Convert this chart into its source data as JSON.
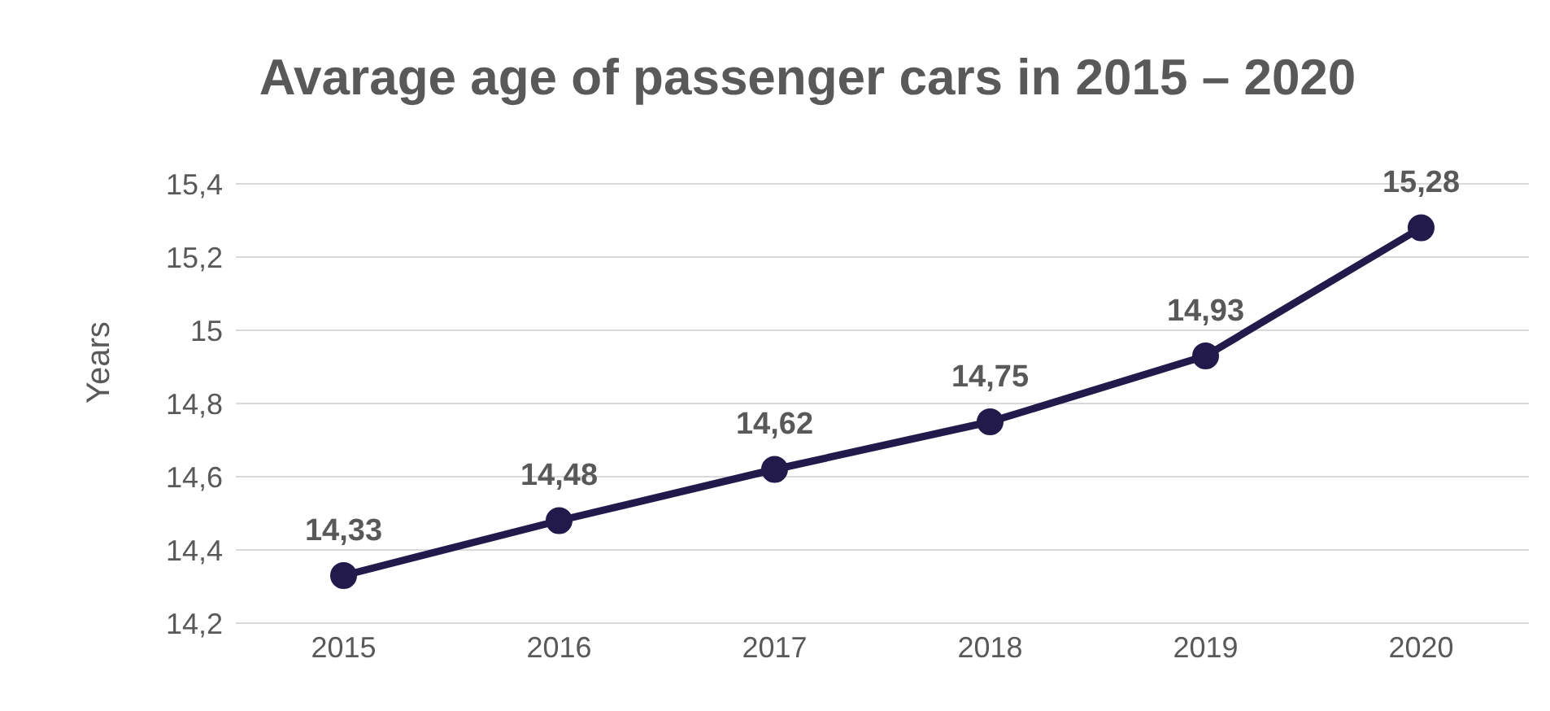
{
  "chart_data": {
    "type": "line",
    "title": "Avarage age of passenger cars in 2015 – 2020",
    "ylabel": "Years",
    "categories": [
      "2015",
      "2016",
      "2017",
      "2018",
      "2019",
      "2020"
    ],
    "series": [
      {
        "color": "#221a4a",
        "values": [
          14.33,
          14.48,
          14.62,
          14.75,
          14.93,
          15.28
        ],
        "value_labels": [
          "14,33",
          "14,48",
          "14,62",
          "14,75",
          "14,93",
          "15,28"
        ]
      }
    ],
    "ylim": [
      14.2,
      15.4
    ],
    "yticks": [
      {
        "value": 14.2,
        "label": "14,2"
      },
      {
        "value": 14.4,
        "label": "14,4"
      },
      {
        "value": 14.6,
        "label": "14,6"
      },
      {
        "value": 14.8,
        "label": "14,8"
      },
      {
        "value": 15,
        "label": "15"
      },
      {
        "value": 15.2,
        "label": "15,2"
      },
      {
        "value": 15.4,
        "label": "15,4"
      }
    ],
    "grid": "y",
    "marker": "circle",
    "line_style": "solid",
    "legend": false
  }
}
